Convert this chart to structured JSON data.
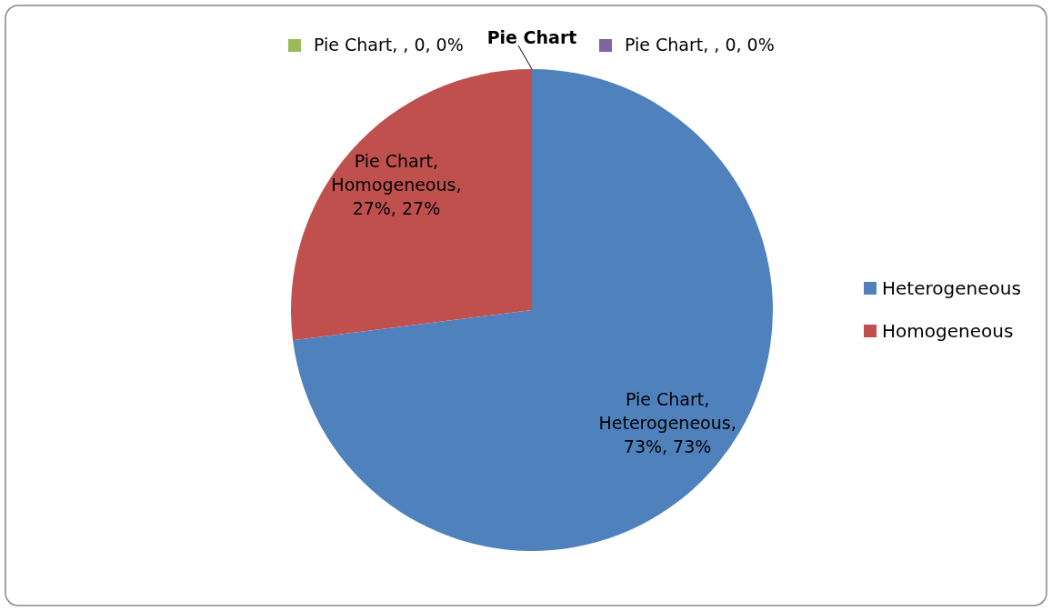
{
  "chart_data": {
    "type": "pie",
    "title": "Pie Chart",
    "categories": [
      "Heterogeneous",
      "Homogeneous",
      null,
      null
    ],
    "values": [
      73,
      27,
      0,
      0
    ],
    "colors": [
      "#4f81bd",
      "#c0504d",
      "#9bbb59",
      "#8064a2"
    ],
    "value_labels": [
      "Pie Chart, Heterogeneous, 73%, 73%",
      "Pie Chart, Homogeneous, 27%, 27%",
      "Pie Chart, , 0, 0%",
      "Pie Chart, , 0, 0%"
    ],
    "legend": "right"
  }
}
